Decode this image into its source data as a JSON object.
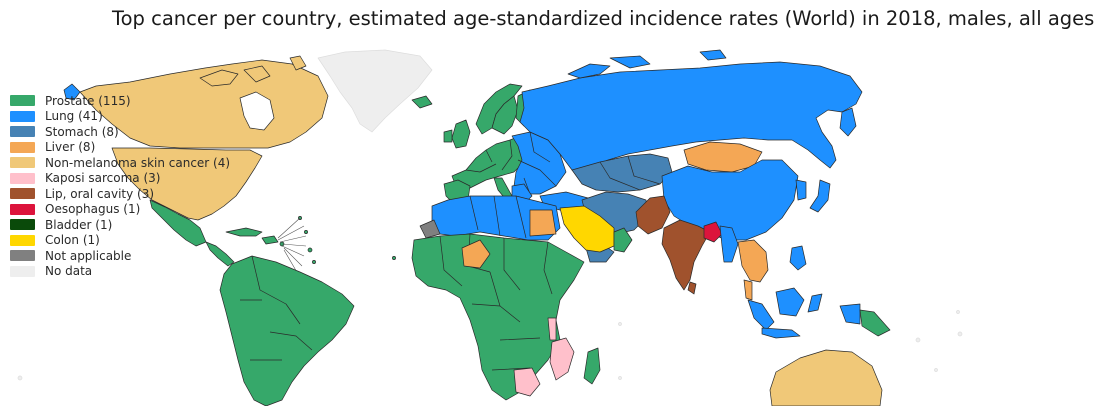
{
  "title": "Top cancer per country, estimated age-standardized incidence rates (World) in 2018, males, all ages",
  "colors": {
    "prostate": "#36a86a",
    "lung": "#1e90ff",
    "stomach": "#4682b4",
    "liver": "#f4a755",
    "skin": "#f0c878",
    "kaposi": "#ffc0cb",
    "lip": "#a0522d",
    "oesophagus": "#dc143c",
    "bladder": "#0a4a0a",
    "colon": "#ffd700",
    "na": "#808080",
    "nodata": "#eeeeee",
    "border": "#2a2a2a"
  },
  "legend": [
    {
      "label": "Prostate (115)",
      "color": "#36a86a"
    },
    {
      "label": "Lung (41)",
      "color": "#1e90ff"
    },
    {
      "label": "Stomach (8)",
      "color": "#4682b4"
    },
    {
      "label": "Liver (8)",
      "color": "#f4a755"
    },
    {
      "label": "Non-melanoma skin cancer (4)",
      "color": "#f0c878"
    },
    {
      "label": "Kaposi sarcoma (3)",
      "color": "#ffc0cb"
    },
    {
      "label": "Lip, oral cavity (3)",
      "color": "#a0522d"
    },
    {
      "label": "Oesophagus (1)",
      "color": "#dc143c"
    },
    {
      "label": "Bladder (1)",
      "color": "#0a4a0a"
    },
    {
      "label": "Colon (1)",
      "color": "#ffd700"
    },
    {
      "label": "Not applicable",
      "color": "#808080"
    },
    {
      "label": "No data",
      "color": "#eeeeee"
    }
  ]
}
